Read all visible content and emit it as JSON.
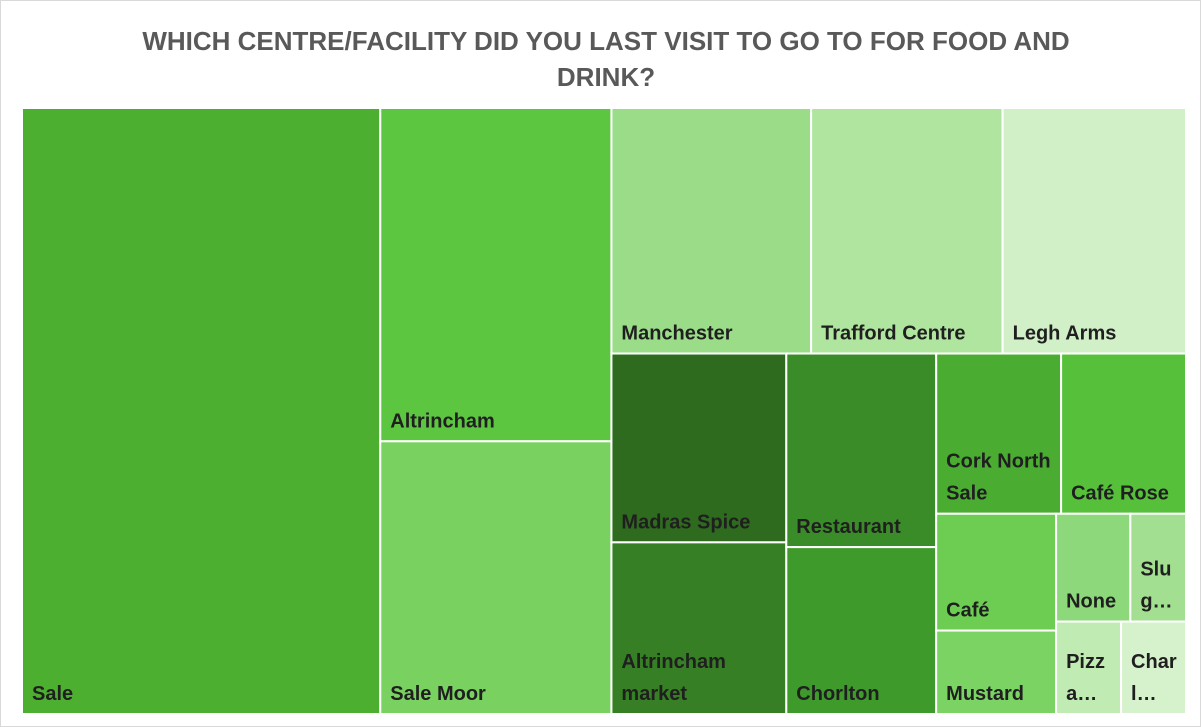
{
  "chart_data": {
    "type": "treemap",
    "title": "WHICH CENTRE/FACILITY DID YOU LAST VISIT TO GO TO FOR FOOD AND DRINK?",
    "categories": [
      "Sale",
      "Altrincham",
      "Sale Moor",
      "Manchester",
      "Trafford Centre",
      "Legh Arms",
      "Madras Spice",
      "Altrincham market",
      "Restaurant",
      "Chorlton",
      "Cork North Sale",
      "Café Rose",
      "Café",
      "Mustard",
      "None",
      "Slug…",
      "Pizza…",
      "Charl…"
    ],
    "values": [
      217,
      77,
      63,
      49,
      47,
      45,
      33,
      30,
      29,
      25,
      20,
      20,
      14,
      10,
      8,
      6,
      6,
      6
    ],
    "colors": [
      "#4daf30",
      "#5dc641",
      "#79d160",
      "#9adc88",
      "#b0e5a0",
      "#d2f0c8",
      "#2e6b1e",
      "#367f24",
      "#3a8c28",
      "#3f9a2c",
      "#4aad32",
      "#56c03b",
      "#6ccd52",
      "#7ad362",
      "#8dd87a",
      "#a2df91",
      "#c0ebb3",
      "#d6f2cc"
    ]
  }
}
